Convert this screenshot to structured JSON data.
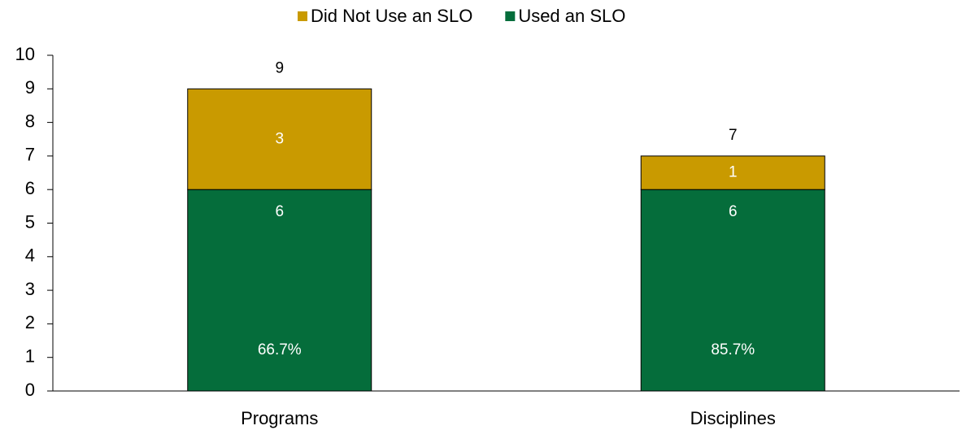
{
  "chart_data": {
    "type": "stacked_bar",
    "categories": [
      "Programs",
      "Disciplines"
    ],
    "series": [
      {
        "name": "Used an SLO",
        "color": "#056d3b",
        "values": [
          6,
          6
        ],
        "share_values": [
          66.7,
          85.7
        ],
        "share_labels": [
          "66.7%",
          "85.7%"
        ]
      },
      {
        "name": "Did Not Use an SLO",
        "color": "#c99a00",
        "values": [
          3,
          1
        ]
      }
    ],
    "totals": [
      9,
      7
    ],
    "ylim": [
      0,
      10
    ],
    "yticks": [
      0,
      1,
      2,
      3,
      4,
      5,
      6,
      7,
      8,
      9,
      10
    ],
    "legend": "top",
    "grid": false
  }
}
